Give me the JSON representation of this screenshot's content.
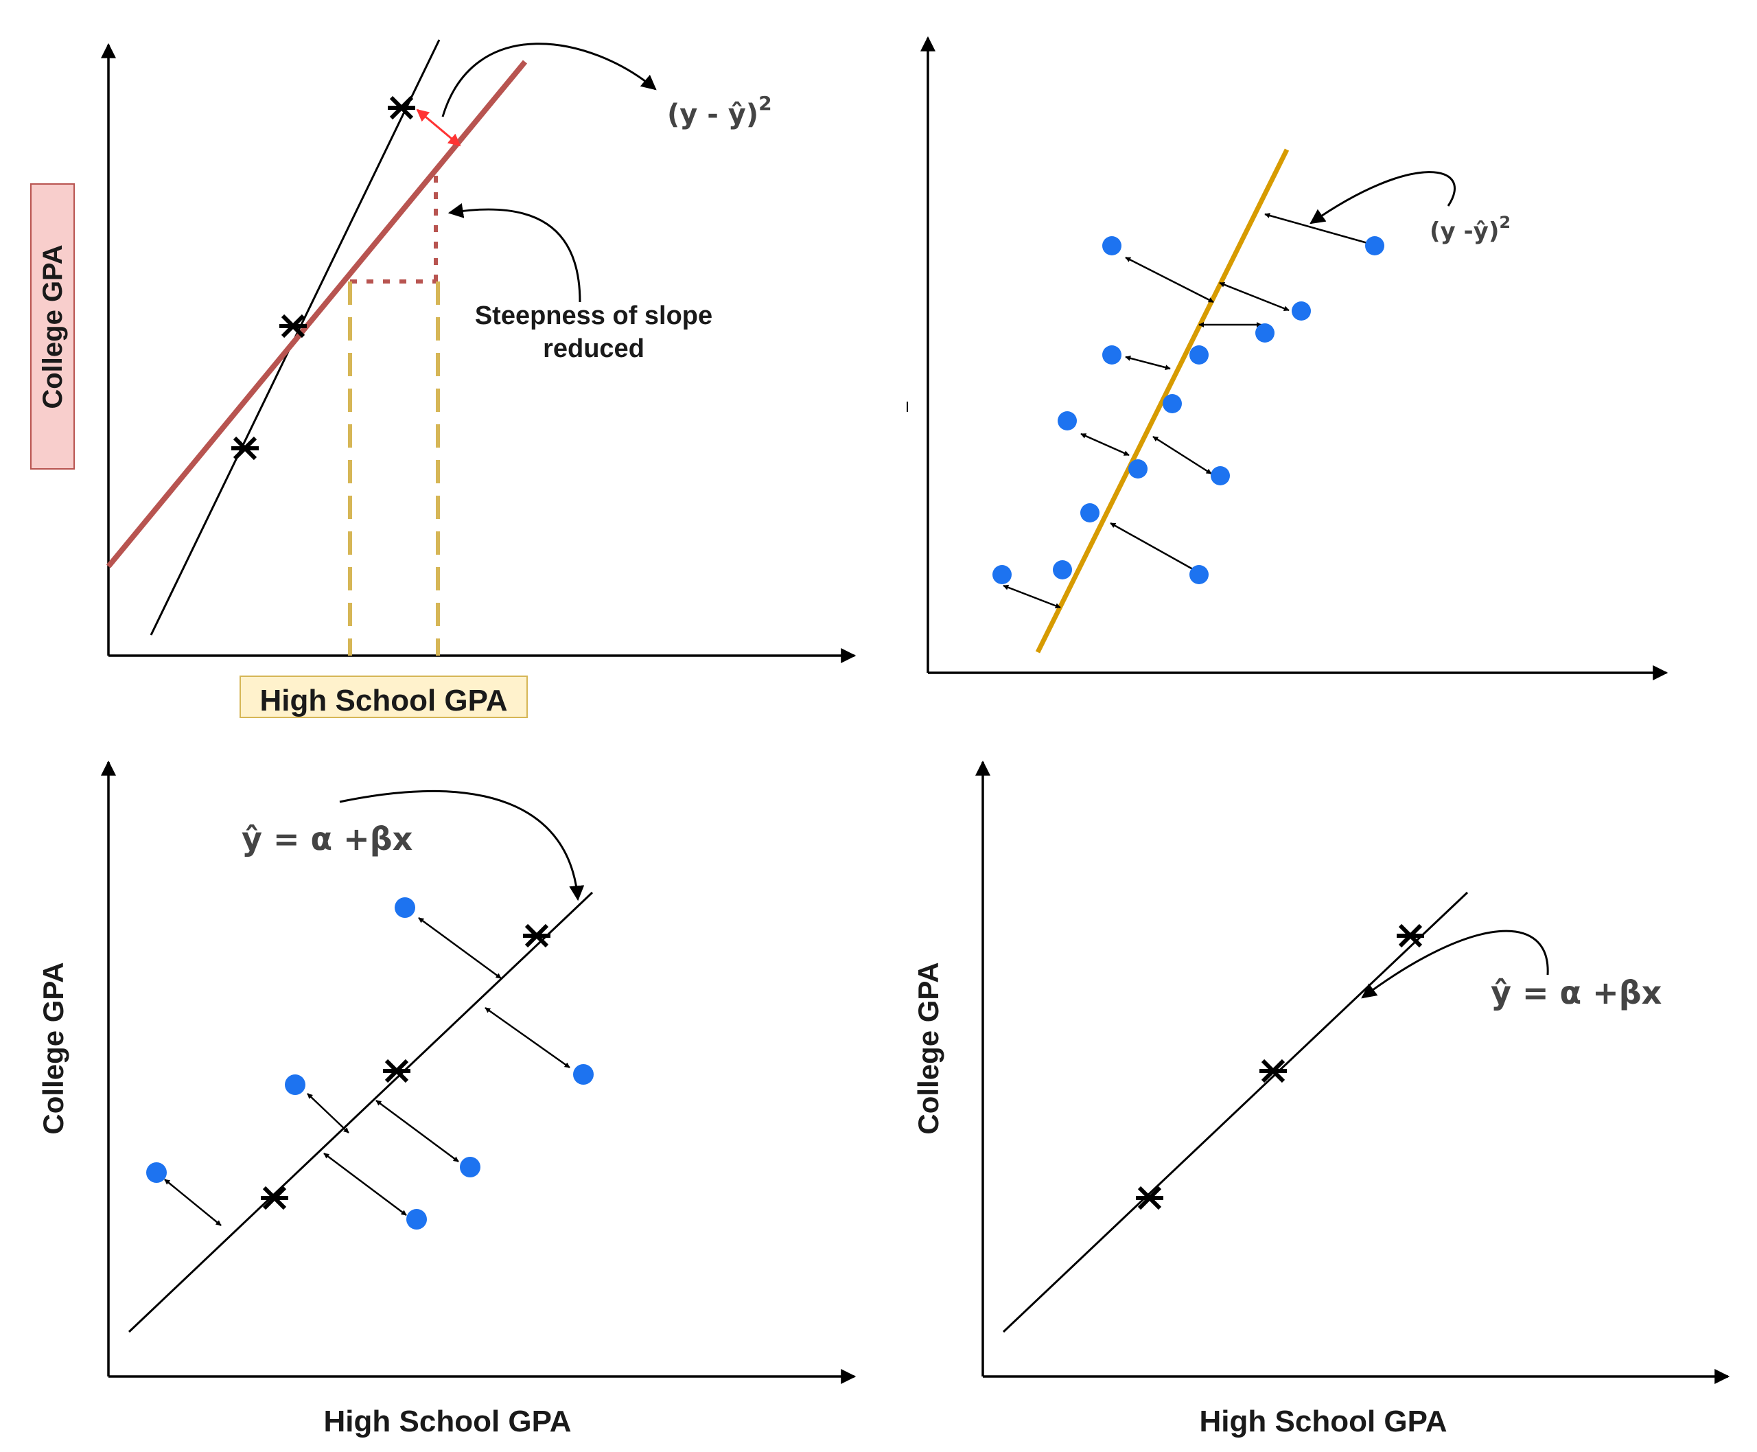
{
  "colors": {
    "axis": "#000000",
    "regression_red": "#b85450",
    "guide_gold": "#d6b656",
    "label_red_fill": "#f8cecc",
    "label_red_stroke": "#b85450",
    "label_yellow_fill": "#fff2cc",
    "label_yellow_stroke": "#d6b656",
    "orange_line": "#d79b00",
    "dot_blue": "#1d73f0",
    "residual_red": "#ff3333"
  },
  "icons": [
    "arrowhead-icon",
    "cross-marker-icon"
  ],
  "panels": {
    "top_left": {
      "y_label": "College GPA",
      "x_label": "High School GPA",
      "residual_formula": "(y - ŷ)",
      "residual_exponent": "2",
      "slope_note_line1": "Steepness of slope",
      "slope_note_line2": "reduced"
    },
    "top_right": {
      "residual_formula": "(y -ŷ)",
      "residual_exponent": "2"
    },
    "bottom_left": {
      "y_label": "College GPA",
      "x_label": "High School GPA",
      "equation": "ŷ  = α +βx"
    },
    "bottom_right": {
      "y_label": "College GPA",
      "x_label": "High School GPA",
      "equation": "ŷ  = α +βx"
    }
  }
}
